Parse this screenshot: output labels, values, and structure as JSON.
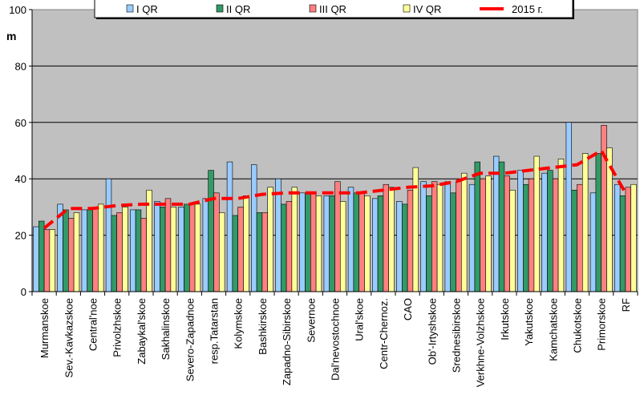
{
  "chart_data": {
    "type": "bar",
    "title": "",
    "ylabel": "m",
    "xlabel": "",
    "ylim": [
      0,
      100
    ],
    "yticks": [
      0,
      20,
      40,
      60,
      80,
      100
    ],
    "grid": true,
    "legend_position": "top",
    "categories": [
      "Murmanskoe",
      "Sev.-Kavkazskoe",
      "Central'noe",
      "Privolzhskoe",
      "Zabaykal'skoe",
      "Sakhalinskoe",
      "Severo-Zapadnoe",
      "resp.Tatarstan",
      "Kolymskoe",
      "Bashkirskoe",
      "Zapadno-Sibirskoe",
      "Severnoe",
      "Dal'nevostochnoe",
      "Ural'skoe",
      "Centr-Chernoz.",
      "CAO",
      "Ob'-Irtyshskoe",
      "Srednesibirskoe",
      "Verkhne-Volzhskoe",
      "Irkutskoe",
      "Yakutskoe",
      "Kamchatskoe",
      "Chukotskoe",
      "Primorskoe",
      "RF"
    ],
    "series": [
      {
        "name": "I QR",
        "kind": "bar",
        "color": "#99ccff",
        "values": [
          23,
          31,
          29,
          40,
          29,
          32,
          30,
          33,
          46,
          45,
          40,
          35,
          34,
          37,
          33,
          32,
          39,
          39,
          38,
          48,
          43,
          42,
          60,
          35,
          38
        ]
      },
      {
        "name": "II QR",
        "kind": "bar",
        "color": "#339966",
        "values": [
          25,
          29,
          29,
          27,
          29,
          30,
          31,
          43,
          27,
          28,
          31,
          35,
          34,
          35,
          34,
          31,
          34,
          35,
          46,
          46,
          38,
          43,
          36,
          49,
          34
        ]
      },
      {
        "name": "III QR",
        "kind": "bar",
        "color": "#ff8080",
        "values": [
          22,
          26,
          30,
          28,
          26,
          33,
          31,
          35,
          30,
          28,
          32,
          35,
          39,
          35,
          38,
          36,
          39,
          39,
          40,
          41,
          40,
          40,
          38,
          59,
          37
        ]
      },
      {
        "name": "IV QR",
        "kind": "bar",
        "color": "#ffff99",
        "values": [
          22,
          28,
          31,
          30,
          36,
          30,
          31,
          28,
          34,
          37,
          37,
          34,
          32,
          34,
          37,
          44,
          38,
          42,
          41,
          36,
          48,
          47,
          49,
          51,
          38
        ]
      },
      {
        "name": "2015 г.",
        "kind": "line",
        "color": "#ff0000",
        "values": [
          22.5,
          29.5,
          29.5,
          30.5,
          31,
          31,
          31,
          33,
          33,
          34.5,
          35,
          35,
          35,
          35,
          36,
          37,
          37.5,
          39,
          42,
          42,
          43,
          44,
          45,
          50,
          35
        ]
      }
    ]
  },
  "colors": {
    "plot_background": "#c0c0c0",
    "gridline": "#000000",
    "bar_outline": "#000000",
    "legend_background": "#ffffff"
  }
}
